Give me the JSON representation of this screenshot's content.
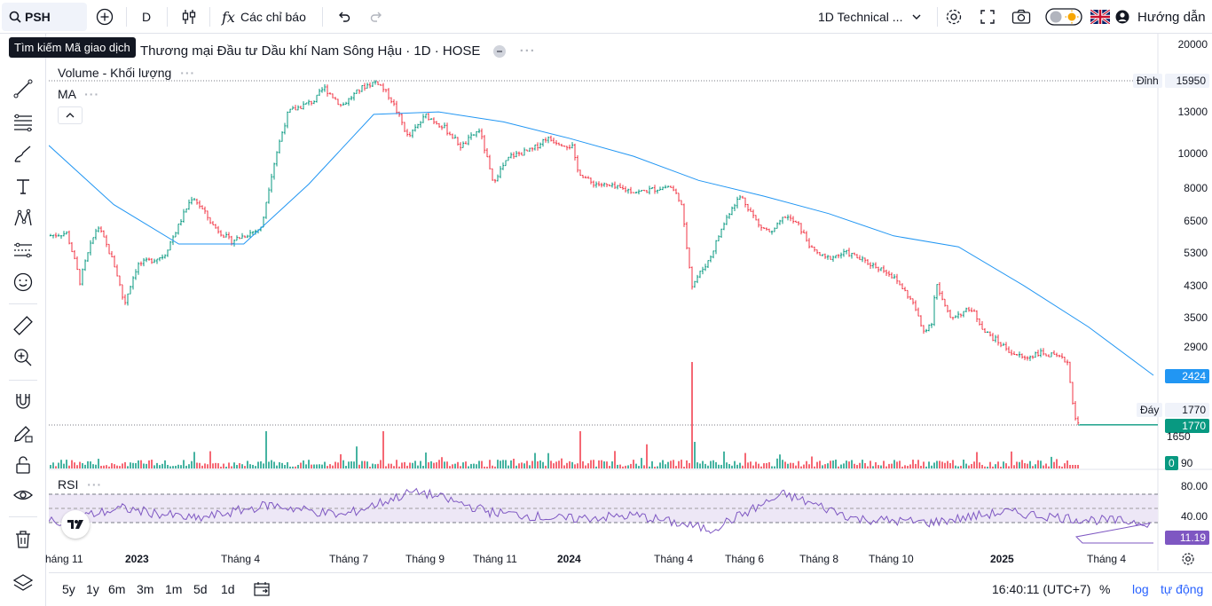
{
  "toolbar": {
    "symbol": "PSH",
    "interval": "D",
    "indicators_label": "Các chỉ báo",
    "layout_name": "1D Technical ...",
    "help_label": "Hướng dẫn"
  },
  "tooltip": {
    "text": "Tìm kiếm Mã giao dịch"
  },
  "legend": {
    "title": "Thương mại Đầu tư Dầu khí Nam Sông Hậu · 1D · HOSE",
    "volume": "Volume - Khối lượng",
    "ma": "MA",
    "rsi": "RSI"
  },
  "price_axis": {
    "labels": [
      "20000",
      "13000",
      "10000",
      "8000",
      "6500",
      "5300",
      "4300",
      "3500",
      "2900",
      "1650"
    ],
    "high_label": "Đỉnh",
    "high_value": "15950",
    "low_label": "Đáy",
    "low_value": "1770",
    "ma_value": "2424",
    "last_price": "1770",
    "volume_value": "0",
    "volume_axis": "90",
    "rsi_labels": [
      "80.00",
      "40.00"
    ],
    "rsi_value": "11.19"
  },
  "time_axis": [
    "háng 11",
    "2023",
    "Tháng 4",
    "Tháng 7",
    "Tháng 9",
    "Tháng 11",
    "2024",
    "Tháng 4",
    "Tháng 6",
    "Tháng 8",
    "Tháng 10",
    "2025",
    "Tháng 4"
  ],
  "bottom": {
    "ranges": [
      "5y",
      "1y",
      "6m",
      "3m",
      "1m",
      "5d",
      "1d"
    ],
    "time": "16:40:11 (UTC+7)",
    "percent": "%",
    "log": "log",
    "auto": "tự động"
  },
  "colors": {
    "up": "#089981",
    "down": "#f23645",
    "ma": "#2196f3",
    "rsi": "#7e57c2",
    "last": "#089981"
  },
  "chart_data": {
    "type": "line",
    "title": "Thương mại Đầu tư Dầu khí Nam Sông Hậu · 1D · HOSE",
    "series": [
      {
        "name": "MA",
        "values": [
          10500,
          7200,
          5600,
          5600,
          8200,
          12800,
          13000,
          12200,
          11000,
          9800,
          8400,
          7600,
          6800,
          5900,
          5500,
          4300,
          3300,
          2424
        ]
      },
      {
        "name": "RSI",
        "values": [
          40,
          60,
          45,
          65,
          50,
          85,
          55,
          45,
          50,
          30,
          80,
          45,
          40,
          55,
          45,
          11.19
        ]
      }
    ],
    "ylim": [
      1650,
      20000
    ],
    "high": 15950,
    "low": 1770,
    "last": 1770
  }
}
